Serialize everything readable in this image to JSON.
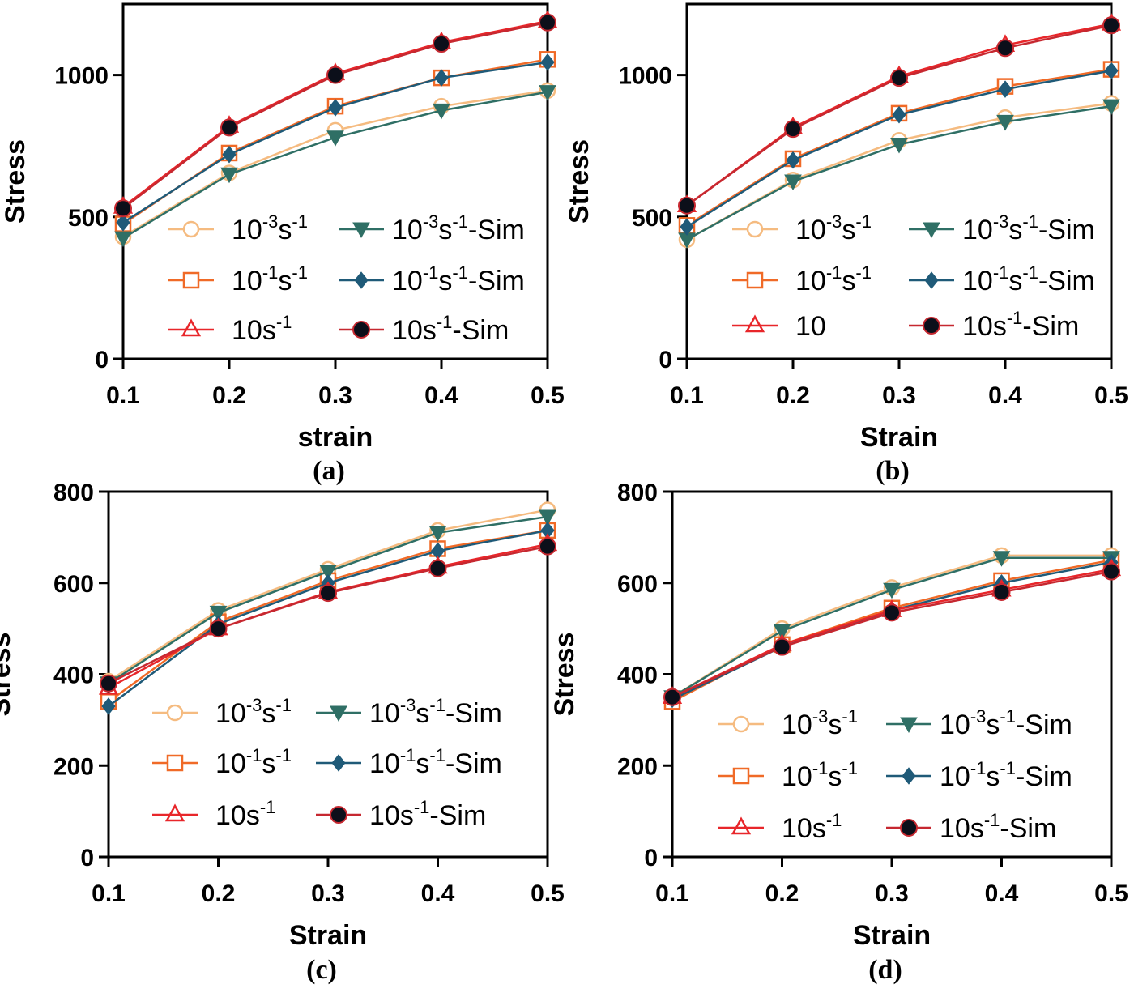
{
  "chart_data": [
    {
      "panel_label": "(a)",
      "type": "line",
      "xlabel": "strain",
      "ylabel": "Stress",
      "x": [
        0.1,
        0.2,
        0.3,
        0.4,
        0.5
      ],
      "xlim": [
        0.1,
        0.5
      ],
      "ylim": [
        0,
        1250
      ],
      "xticks": [
        "0.1",
        "0.2",
        "0.3",
        "0.4",
        "0.5"
      ],
      "yticks": [
        0,
        500,
        1000
      ],
      "series": [
        {
          "key": "e3",
          "name": "10^-3s^-1",
          "values": [
            430,
            655,
            805,
            890,
            945
          ]
        },
        {
          "key": "e1",
          "name": "10^-1s^-1",
          "values": [
            475,
            725,
            890,
            990,
            1055
          ]
        },
        {
          "key": "e10",
          "name": "10s^-1",
          "values": [
            535,
            820,
            1005,
            1115,
            1190
          ]
        },
        {
          "key": "s3",
          "name": "10^-3s^-1-Sim",
          "values": [
            425,
            650,
            780,
            875,
            940
          ]
        },
        {
          "key": "s1",
          "name": "10^-1s^-1-Sim",
          "values": [
            480,
            720,
            885,
            990,
            1045
          ]
        },
        {
          "key": "s10",
          "name": "10s^-1-Sim",
          "values": [
            530,
            815,
            1000,
            1110,
            1185
          ]
        }
      ]
    },
    {
      "panel_label": "(b)",
      "type": "line",
      "xlabel": "Strain",
      "ylabel": "Stress",
      "x": [
        0.1,
        0.2,
        0.3,
        0.4,
        0.5
      ],
      "xlim": [
        0.1,
        0.5
      ],
      "ylim": [
        0,
        1250
      ],
      "xticks": [
        "0.1",
        "0.2",
        "0.3",
        "0.4",
        "0.5"
      ],
      "yticks": [
        0,
        500,
        1000
      ],
      "series": [
        {
          "key": "e3",
          "name": "10^-3s^-1",
          "values": [
            420,
            630,
            770,
            850,
            900
          ]
        },
        {
          "key": "e1",
          "name": "10^-1s^-1",
          "values": [
            470,
            705,
            865,
            960,
            1020
          ]
        },
        {
          "key": "e10",
          "name": "10",
          "values": [
            540,
            815,
            995,
            1105,
            1180
          ]
        },
        {
          "key": "s3",
          "name": "10^-3s^-1-Sim",
          "values": [
            420,
            625,
            755,
            835,
            890
          ]
        },
        {
          "key": "s1",
          "name": "10^-1s^-1-Sim",
          "values": [
            465,
            700,
            860,
            950,
            1015
          ]
        },
        {
          "key": "s10",
          "name": "10s^-1-Sim",
          "values": [
            540,
            810,
            990,
            1095,
            1175
          ]
        }
      ]
    },
    {
      "panel_label": "(c)",
      "type": "line",
      "xlabel": "Strain",
      "ylabel": "Stress",
      "x": [
        0.1,
        0.2,
        0.3,
        0.4,
        0.5
      ],
      "xlim": [
        0.1,
        0.5
      ],
      "ylim": [
        0,
        800
      ],
      "xticks": [
        "0.1",
        "0.2",
        "0.3",
        "0.4",
        "0.5"
      ],
      "yticks": [
        0,
        200,
        400,
        600,
        800
      ],
      "series": [
        {
          "key": "e3",
          "name": "10^-3s^-1",
          "values": [
            385,
            540,
            630,
            715,
            760
          ]
        },
        {
          "key": "e1",
          "name": "10^-1s^-1",
          "values": [
            340,
            515,
            605,
            675,
            715
          ]
        },
        {
          "key": "e10",
          "name": "10s^-1",
          "values": [
            370,
            500,
            580,
            635,
            685
          ]
        },
        {
          "key": "s3",
          "name": "10^-3s^-1-Sim",
          "values": [
            380,
            535,
            625,
            710,
            745
          ]
        },
        {
          "key": "s1",
          "name": "10^-1s^-1-Sim",
          "values": [
            330,
            510,
            600,
            670,
            715
          ]
        },
        {
          "key": "s10",
          "name": "10s^-1-Sim",
          "values": [
            380,
            500,
            578,
            632,
            680
          ]
        }
      ]
    },
    {
      "panel_label": "(d)",
      "type": "line",
      "xlabel": "Strain",
      "ylabel": "Stress",
      "x": [
        0.1,
        0.2,
        0.3,
        0.4,
        0.5
      ],
      "xlim": [
        0.1,
        0.5
      ],
      "ylim": [
        0,
        800
      ],
      "xticks": [
        "0.1",
        "0.2",
        "0.3",
        "0.4",
        "0.5"
      ],
      "yticks": [
        0,
        200,
        400,
        600,
        800
      ],
      "series": [
        {
          "key": "e3",
          "name": "10^-3s^-1",
          "values": [
            350,
            500,
            590,
            660,
            660
          ]
        },
        {
          "key": "e1",
          "name": "10^-1s^-1",
          "values": [
            340,
            465,
            545,
            605,
            650
          ]
        },
        {
          "key": "e10",
          "name": "10s^-1",
          "values": [
            350,
            465,
            540,
            585,
            630
          ]
        },
        {
          "key": "s3",
          "name": "10^-3s^-1-Sim",
          "values": [
            350,
            495,
            585,
            655,
            655
          ]
        },
        {
          "key": "s1",
          "name": "10^-1s^-1-Sim",
          "values": [
            345,
            460,
            540,
            600,
            645
          ]
        },
        {
          "key": "s10",
          "name": "10s^-1-Sim",
          "values": [
            350,
            460,
            535,
            580,
            625
          ]
        }
      ]
    }
  ],
  "legend_tokens": {
    "ten": "10",
    "s": "s",
    "exp_m3": "-3",
    "exp_m1": "-1",
    "sim": "-Sim"
  },
  "colors": {
    "e3": "#f5bb80",
    "e1": "#f06a27",
    "e10": "#e8262a",
    "s3": "#2f6f65",
    "s1": "#1f5a78",
    "s10": "#0c0f1a",
    "s10_line": "#c62830"
  }
}
